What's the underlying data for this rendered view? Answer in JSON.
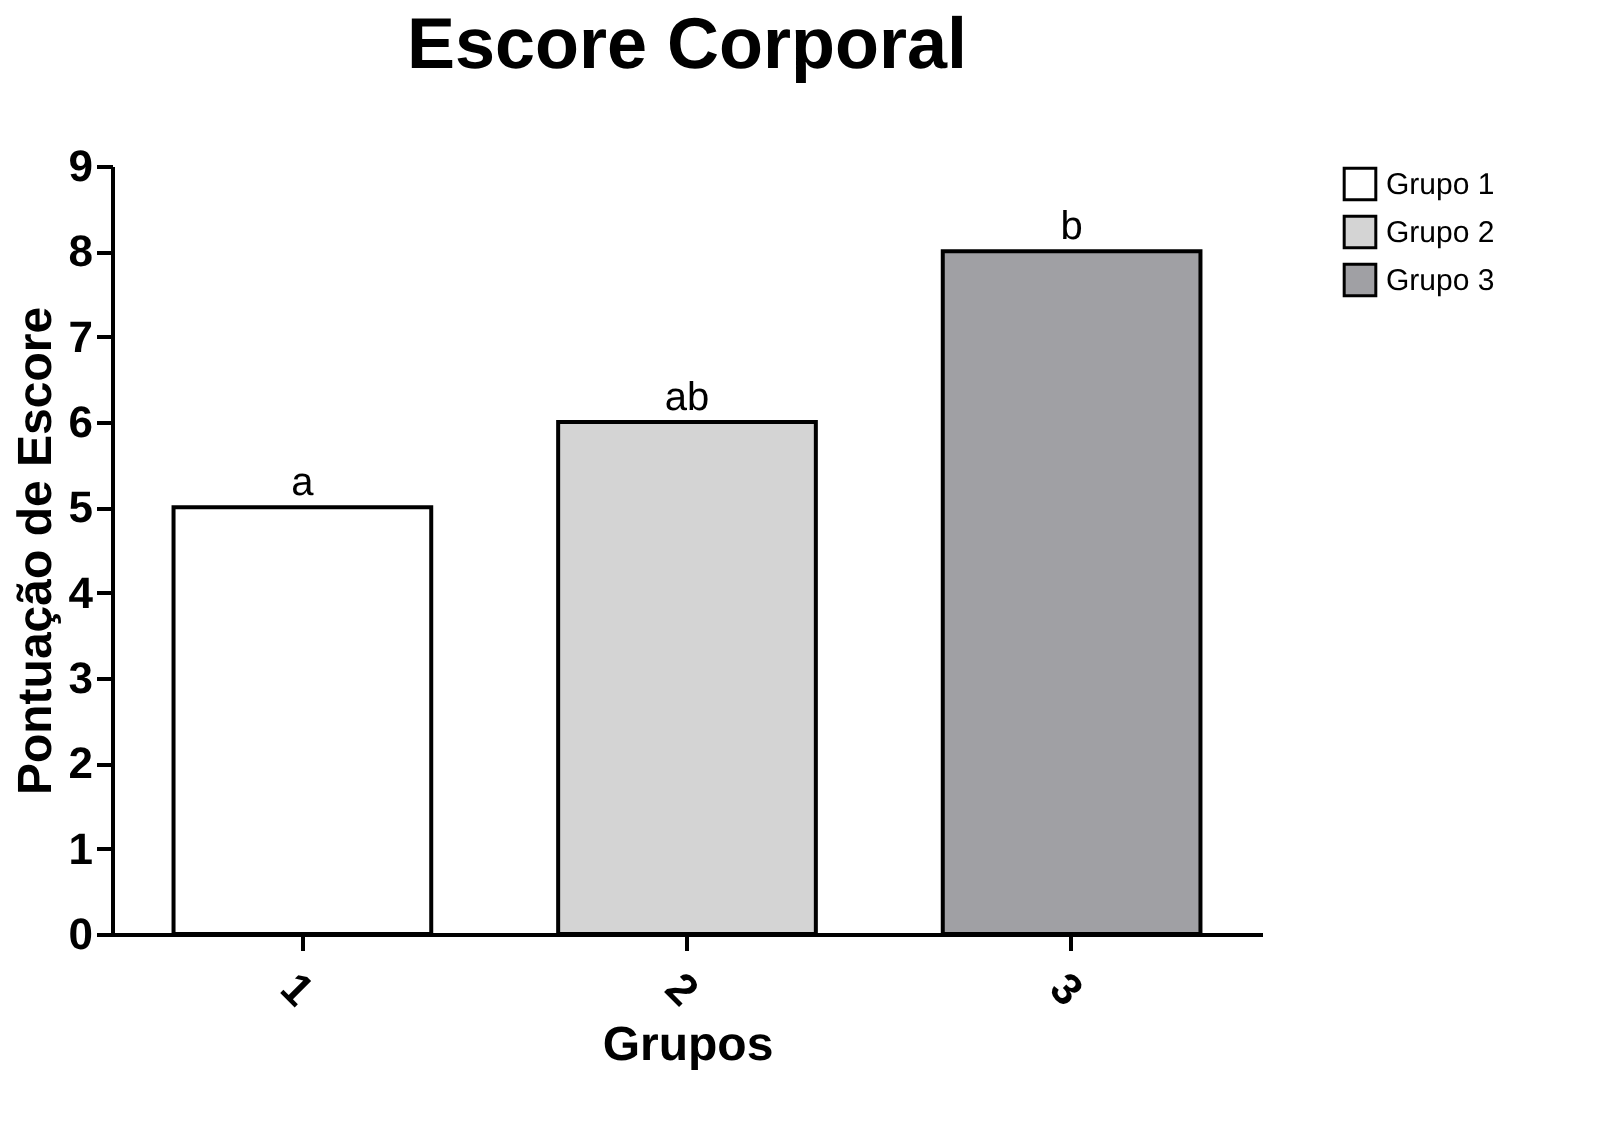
{
  "chart_data": {
    "type": "bar",
    "title": "Escore Corporal",
    "xlabel": "Grupos",
    "ylabel": "Pontuação de Escore",
    "categories": [
      "1",
      "2",
      "3"
    ],
    "series": [
      {
        "name": "Grupo 1",
        "color": "#ffffff",
        "values": [
          5,
          null,
          null
        ]
      },
      {
        "name": "Grupo 2",
        "color": "#d4d4d4",
        "values": [
          null,
          6,
          null
        ]
      },
      {
        "name": "Grupo 3",
        "color": "#a0a0a4",
        "values": [
          null,
          null,
          8
        ]
      }
    ],
    "ylim": [
      0,
      9
    ],
    "yticks": [
      0,
      1,
      2,
      3,
      4,
      5,
      6,
      7,
      8,
      9
    ],
    "annotations": [
      {
        "text": "a",
        "x": "1",
        "y": 5
      },
      {
        "text": "ab",
        "x": "2",
        "y": 6
      },
      {
        "text": "b",
        "x": "3",
        "y": 8
      }
    ],
    "grid": false,
    "legend": "top right"
  }
}
